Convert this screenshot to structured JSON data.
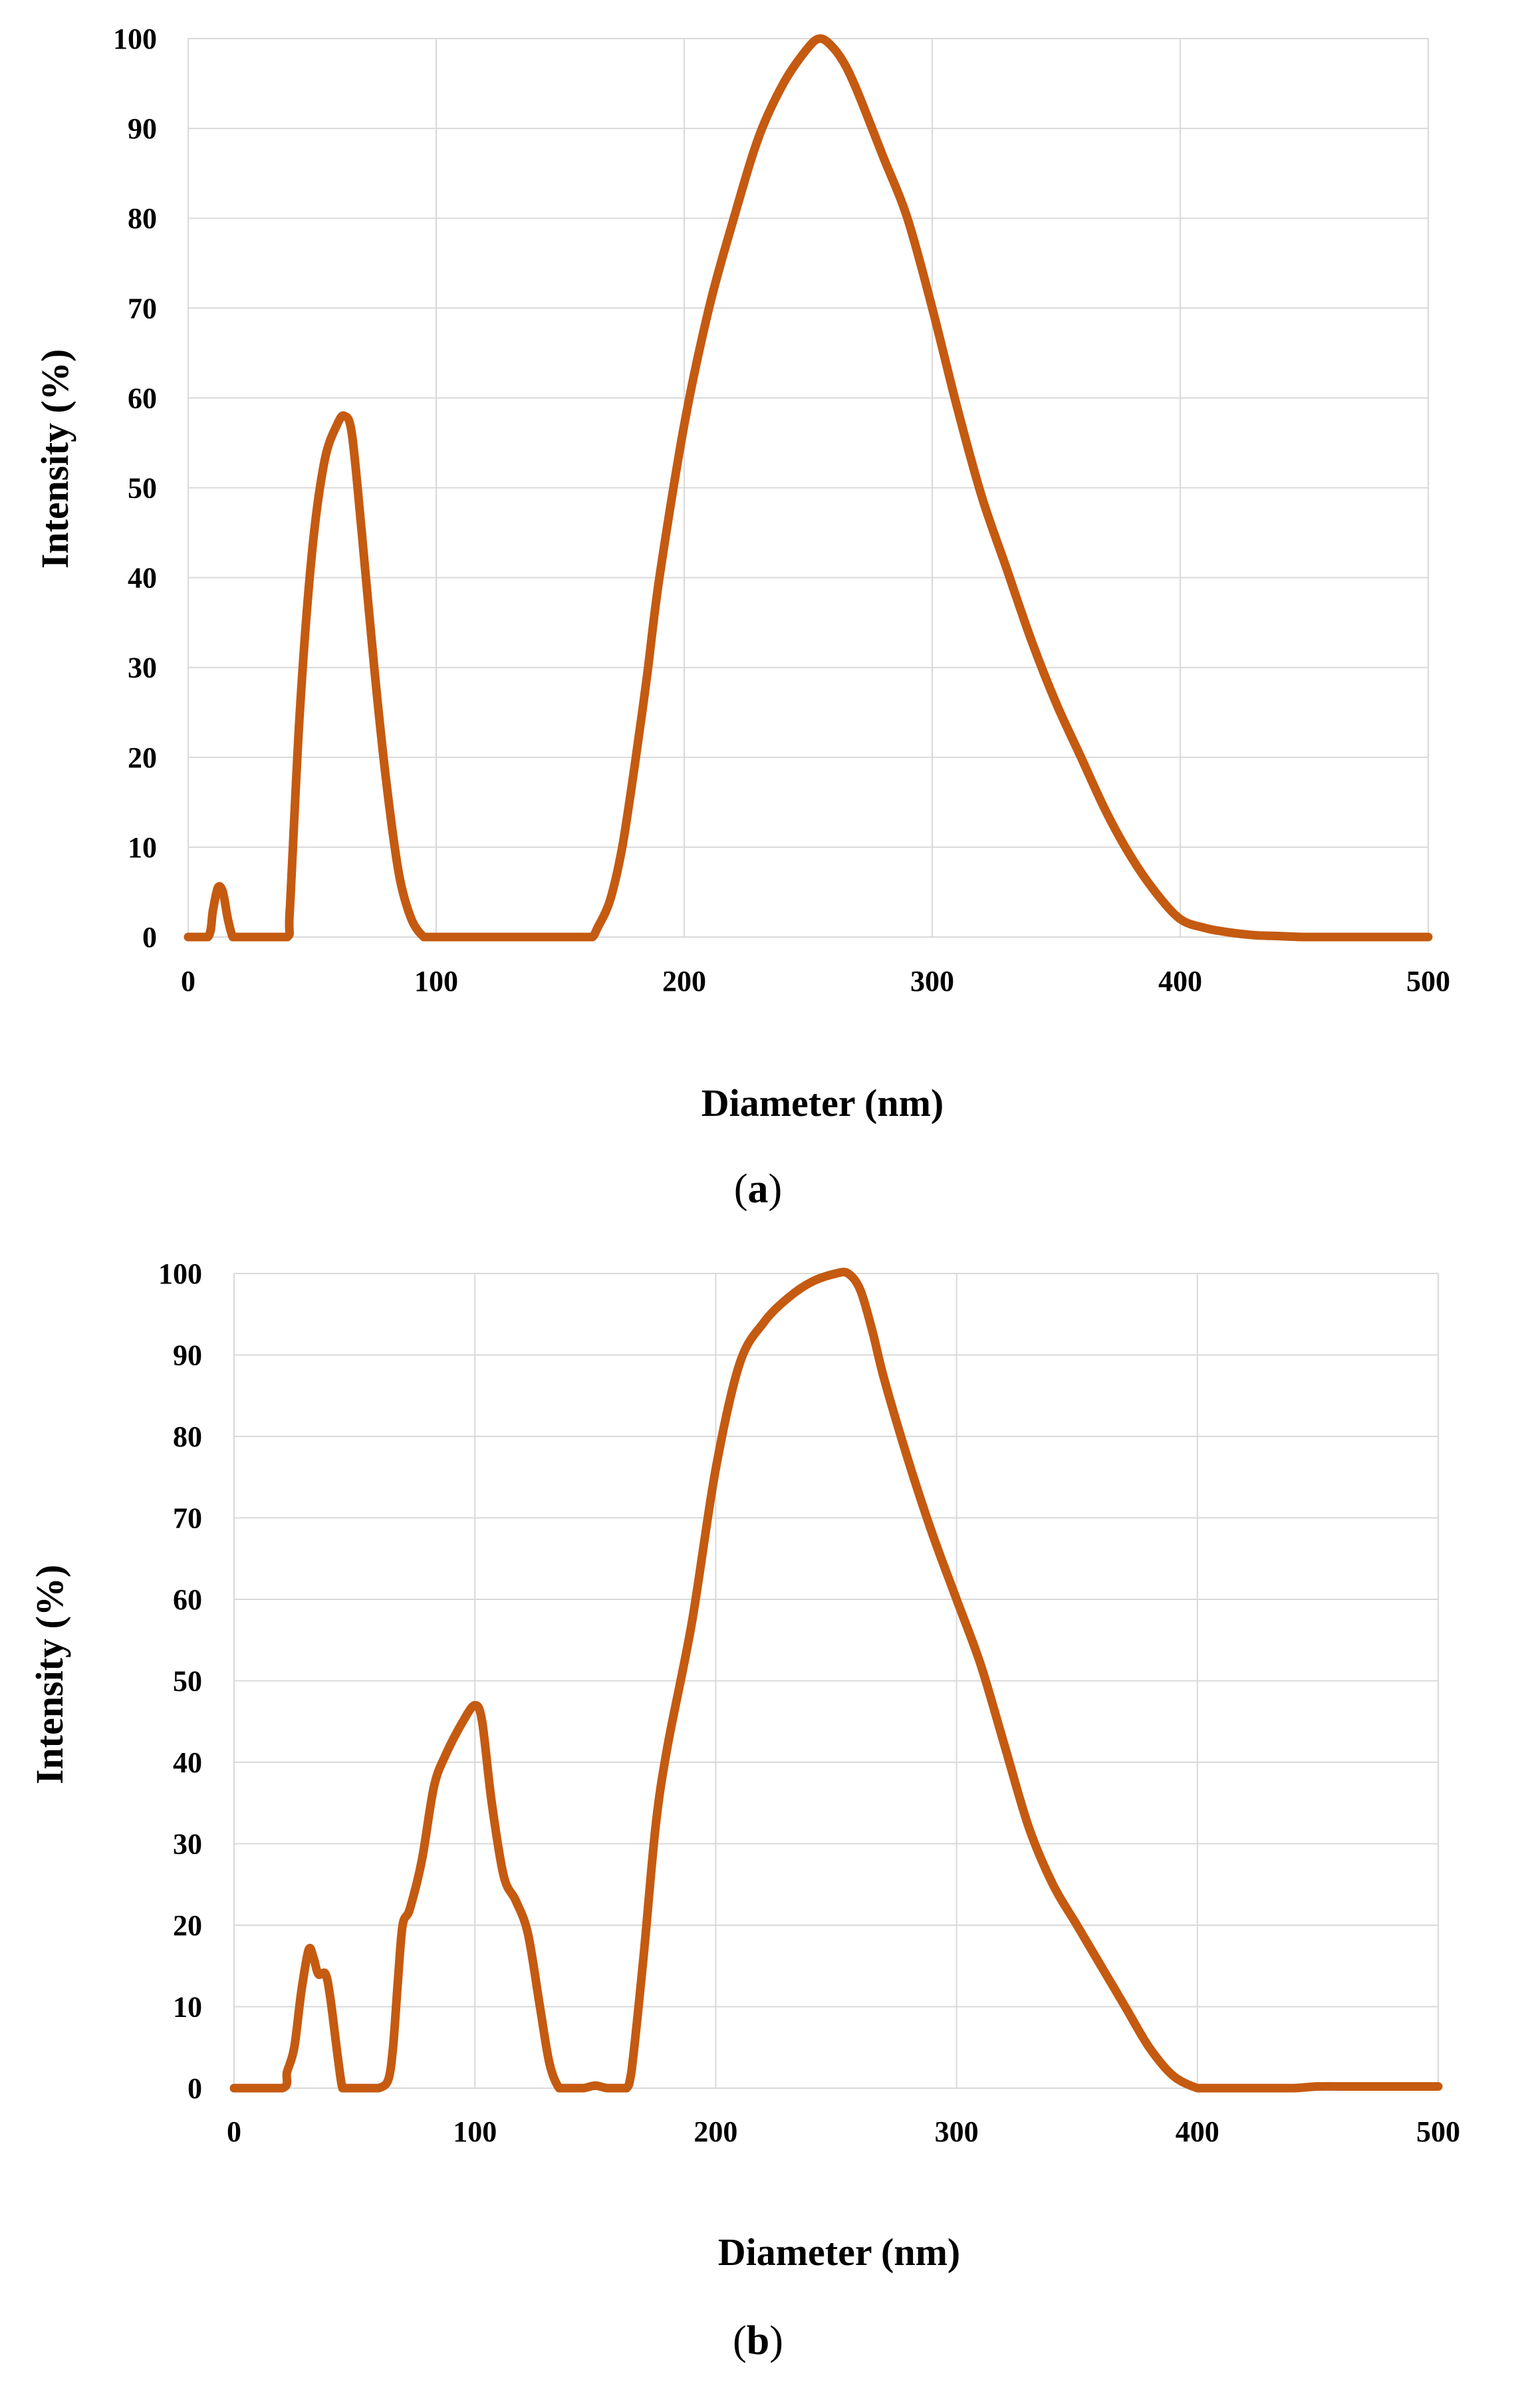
{
  "chart_data": [
    {
      "type": "line",
      "panel": "a",
      "caption_open": "(",
      "caption_letter": "a",
      "caption_close": ")",
      "xlabel": "Diameter (nm)",
      "ylabel": "Intensity (%)",
      "xlim": [
        0,
        500
      ],
      "ylim": [
        0,
        100
      ],
      "xticks": [
        "0",
        "100",
        "200",
        "300",
        "400",
        "500"
      ],
      "yticks": [
        "0",
        "10",
        "20",
        "30",
        "40",
        "50",
        "60",
        "70",
        "80",
        "90",
        "100"
      ],
      "grid": true,
      "line_color": "#c55a11",
      "series": [
        {
          "name": "Intensity",
          "x": [
            0,
            8,
            10,
            12,
            14,
            16,
            18,
            20,
            30,
            40,
            41,
            45,
            50,
            55,
            60,
            63,
            66,
            70,
            75,
            80,
            85,
            90,
            95,
            98,
            100,
            110,
            120,
            130,
            140,
            150,
            155,
            160,
            163,
            165,
            170,
            175,
            180,
            185,
            190,
            200,
            210,
            220,
            230,
            240,
            250,
            255,
            260,
            265,
            270,
            280,
            290,
            300,
            310,
            320,
            330,
            340,
            350,
            360,
            370,
            380,
            390,
            400,
            410,
            420,
            430,
            440,
            450,
            460,
            470,
            480,
            490,
            500
          ],
          "y": [
            0,
            0,
            3,
            5.5,
            5,
            2,
            0,
            0,
            0,
            0,
            3,
            25,
            43,
            53,
            57,
            58,
            56,
            45,
            30,
            17,
            7,
            2,
            0,
            0,
            0,
            0,
            0,
            0,
            0,
            0,
            0,
            0,
            0,
            1,
            4,
            10,
            19,
            29,
            40,
            57,
            70,
            80,
            89,
            95,
            99,
            100,
            99,
            97,
            94,
            87,
            80,
            70,
            59,
            49,
            41,
            33,
            26,
            20,
            14,
            9,
            5,
            2,
            1,
            0.5,
            0.2,
            0.1,
            0,
            0,
            0,
            0,
            0,
            0
          ]
        }
      ]
    },
    {
      "type": "line",
      "panel": "b",
      "caption_open": "(",
      "caption_letter": "b",
      "caption_close": ")",
      "xlabel": "Diameter (nm)",
      "ylabel": "Intensity (%)",
      "xlim": [
        0,
        500
      ],
      "ylim": [
        0,
        100
      ],
      "xticks": [
        "0",
        "100",
        "200",
        "300",
        "400",
        "500"
      ],
      "yticks": [
        "0",
        "10",
        "20",
        "30",
        "40",
        "50",
        "60",
        "70",
        "80",
        "90",
        "100"
      ],
      "grid": true,
      "line_color": "#c55a11",
      "series": [
        {
          "name": "Intensity",
          "x": [
            0,
            20,
            22,
            25,
            28,
            31,
            33,
            35,
            38,
            40,
            43,
            45,
            47,
            50,
            55,
            60,
            64,
            66,
            68,
            70,
            73,
            78,
            83,
            88,
            95,
            100,
            103,
            107,
            112,
            117,
            122,
            127,
            131,
            135,
            138,
            140,
            145,
            150,
            155,
            160,
            163,
            165,
            170,
            175,
            180,
            190,
            200,
            210,
            220,
            230,
            240,
            250,
            255,
            260,
            265,
            270,
            280,
            290,
            300,
            310,
            320,
            330,
            340,
            350,
            360,
            370,
            380,
            390,
            400,
            405,
            410,
            420,
            430,
            440,
            450,
            460,
            480,
            500
          ],
          "y": [
            0,
            0,
            2,
            5,
            12,
            17,
            16,
            14,
            14,
            11,
            4,
            0,
            0,
            0,
            0,
            0,
            1,
            5,
            13,
            20,
            22,
            28,
            37,
            41,
            45,
            47,
            45,
            35,
            26,
            23,
            19,
            10,
            3,
            0,
            0,
            0,
            0,
            0.3,
            0,
            0,
            0,
            2,
            16,
            32,
            42,
            57,
            76,
            89,
            94,
            97,
            99,
            100,
            100,
            98,
            93,
            87,
            77,
            68,
            60,
            52,
            42,
            32,
            25,
            20,
            15,
            10,
            5,
            1.5,
            0,
            0,
            0,
            0,
            0,
            0,
            0.2,
            0.2,
            0.2,
            0.2
          ]
        }
      ]
    }
  ]
}
